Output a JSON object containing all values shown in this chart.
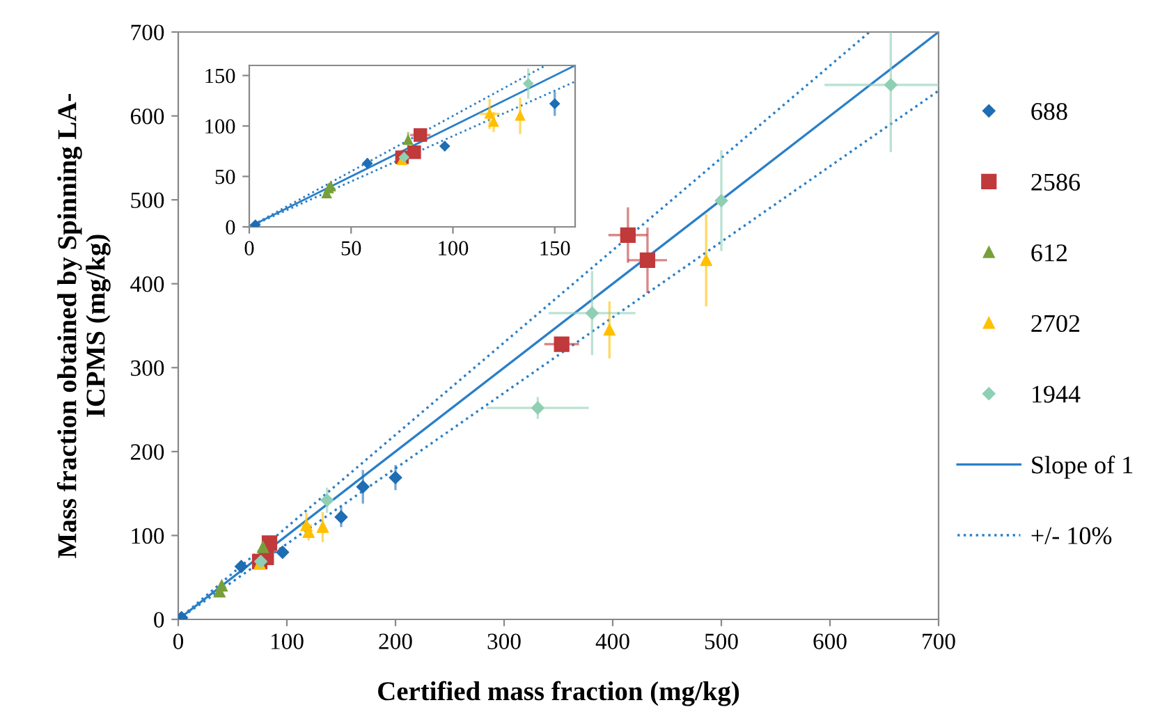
{
  "chart_data": [
    {
      "type": "scatter",
      "xlabel": "Certified mass fraction (mg/kg)",
      "ylabel": "Mass fraction obtained by Spinning LA-\nICPMS (mg/kg)",
      "xlim": [
        0,
        700
      ],
      "ylim": [
        0,
        700
      ],
      "xticks": [
        0,
        100,
        200,
        300,
        400,
        500,
        600,
        700
      ],
      "yticks": [
        0,
        100,
        200,
        300,
        400,
        500,
        600,
        700
      ],
      "legend": "right",
      "grid": false,
      "series": [
        {
          "name": "688",
          "marker": "diamond",
          "color": "#1f6db2",
          "x": [
            3,
            58,
            96,
            150,
            170,
            200
          ],
          "values": [
            2,
            63,
            80,
            122,
            158,
            169
          ],
          "errors": [
            null,
            5,
            5,
            12,
            20,
            15
          ]
        },
        {
          "name": "2586",
          "marker": "square",
          "color": "#c0393b",
          "x": [
            75,
            81,
            84,
            353,
            414,
            432
          ],
          "values": [
            69,
            74,
            91,
            328,
            458,
            428
          ],
          "errors": [
            null,
            null,
            null,
            null,
            33,
            39
          ],
          "xerrors": [
            null,
            null,
            5,
            16,
            18,
            18
          ]
        },
        {
          "name": "612",
          "marker": "triangle",
          "color": "#77a03a",
          "x": [
            38,
            40,
            78
          ],
          "values": [
            33,
            40,
            86
          ],
          "errors": [
            null,
            null,
            8
          ]
        },
        {
          "name": "2702",
          "marker": "triangle",
          "color": "#ffc000",
          "x": [
            75,
            118,
            120,
            133,
            397,
            486
          ],
          "values": [
            66,
            112,
            104,
            110,
            345,
            428
          ],
          "errors": [
            null,
            15,
            10,
            18,
            34,
            55
          ],
          "xerrors": [
            null,
            5,
            null,
            null,
            null,
            null
          ]
        },
        {
          "name": "1944",
          "marker": "diamond",
          "color": "#8fcfb4",
          "x": [
            76,
            137,
            331,
            381,
            500,
            656
          ],
          "values": [
            69,
            142,
            252,
            365,
            499,
            637
          ],
          "errors": [
            null,
            15,
            13,
            50,
            60,
            [
              557,
              700
            ]
          ],
          "xerrors": [
            null,
            null,
            47,
            40,
            null,
            61
          ]
        },
        {
          "name": "Slope of 1",
          "type": "line",
          "marker": "none",
          "line_style": "solid",
          "color": "#2a7fc8",
          "x": [
            0,
            700
          ],
          "values": [
            0,
            700
          ]
        },
        {
          "name": "+/- 10%",
          "type": "line",
          "marker": "none",
          "line_style": "dotted",
          "color": "#2a7fc8",
          "x": [
            0,
            636.4
          ],
          "values": [
            0,
            700
          ]
        },
        {
          "type": "line",
          "marker": "none",
          "line_style": "dotted",
          "color": "#2a7fc8",
          "x": [
            0,
            700
          ],
          "values": [
            0,
            630
          ]
        }
      ]
    },
    {
      "type": "scatter",
      "xlim": [
        0,
        160
      ],
      "ylim": [
        0,
        160
      ],
      "xticks": [
        0,
        50,
        100,
        150
      ],
      "yticks": [
        0,
        50,
        100,
        150
      ],
      "legend": false,
      "grid": false,
      "series": [
        {
          "marker": "diamond",
          "color": "#1f6db2",
          "x": [
            3,
            58,
            96,
            150
          ],
          "values": [
            2,
            63,
            80,
            122
          ],
          "errors": [
            null,
            5,
            5,
            12
          ]
        },
        {
          "marker": "square",
          "color": "#c0393b",
          "x": [
            75,
            81,
            84
          ],
          "values": [
            69,
            74,
            91
          ],
          "xerrors": [
            null,
            null,
            5
          ]
        },
        {
          "marker": "triangle",
          "color": "#77a03a",
          "x": [
            38,
            39,
            40,
            78
          ],
          "values": [
            33,
            38,
            40,
            86
          ],
          "errors": [
            null,
            null,
            null,
            8
          ]
        },
        {
          "marker": "triangle",
          "color": "#ffc000",
          "x": [
            75,
            118,
            120,
            133
          ],
          "values": [
            66,
            112,
            104,
            110
          ],
          "errors": [
            null,
            15,
            10,
            18
          ],
          "xerrors": [
            null,
            5,
            null,
            null
          ]
        },
        {
          "marker": "diamond",
          "color": "#8fcfb4",
          "x": [
            76,
            137
          ],
          "values": [
            69,
            142
          ],
          "errors": [
            null,
            15
          ]
        },
        {
          "type": "line",
          "marker": "none",
          "line_style": "solid",
          "color": "#2a7fc8",
          "x": [
            0,
            160
          ],
          "values": [
            0,
            160
          ]
        },
        {
          "type": "line",
          "marker": "none",
          "line_style": "dotted",
          "color": "#2a7fc8",
          "x": [
            0,
            145.5
          ],
          "values": [
            0,
            160
          ]
        },
        {
          "type": "line",
          "marker": "none",
          "line_style": "dotted",
          "color": "#2a7fc8",
          "x": [
            0,
            160
          ],
          "values": [
            0,
            144
          ]
        }
      ]
    }
  ]
}
